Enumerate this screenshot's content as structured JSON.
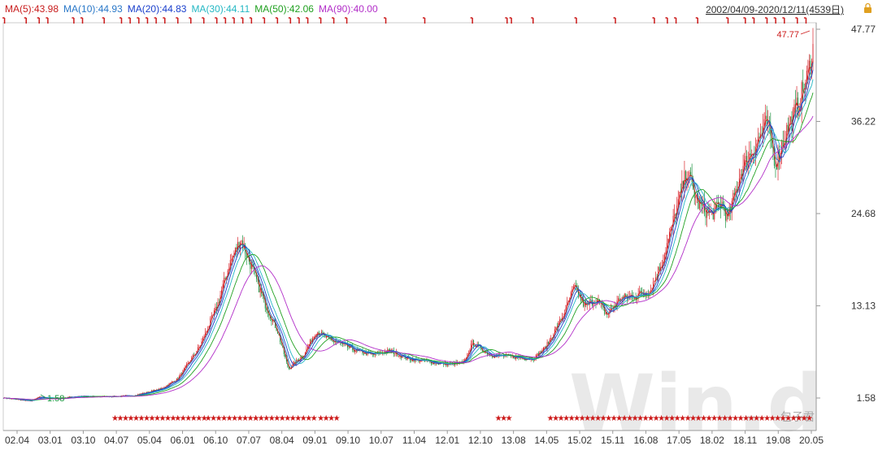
{
  "header": {
    "ma_labels": [
      {
        "text": "MA(5):43.98",
        "color": "#c81c1c"
      },
      {
        "text": "MA(10):44.93",
        "color": "#2a78c8"
      },
      {
        "text": "MA(20):44.83",
        "color": "#1a3fcc"
      },
      {
        "text": "MA(30):44.11",
        "color": "#25b8c4"
      },
      {
        "text": "MA(50):42.06",
        "color": "#20a020"
      },
      {
        "text": "MA(90):40.00",
        "color": "#b22ec8"
      }
    ],
    "date_range": "2002/04/09-2020/12/11(4539日)",
    "lock_icon": "lock-icon"
  },
  "watermark": {
    "logo_text": "Win.d",
    "caption": "包子君"
  },
  "chart_data": {
    "type": "candlestick",
    "x_tick_labels": [
      "02.04",
      "03.01",
      "03.10",
      "04.07",
      "05.04",
      "06.01",
      "06.10",
      "07.07",
      "08.04",
      "09.01",
      "09.10",
      "10.07",
      "11.04",
      "12.01",
      "12.10",
      "13.08",
      "14.05",
      "15.02",
      "15.11",
      "16.08",
      "17.05",
      "18.02",
      "18.11",
      "19.08",
      "20.05"
    ],
    "y_tick_labels": [
      "47.77",
      "36.22",
      "24.68",
      "13.13",
      "1.58"
    ],
    "ylim": [
      1.58,
      47.77
    ],
    "max_annotation": {
      "date": "2020.11",
      "value": "47.77"
    },
    "min_annotation": {
      "date": "2003.01",
      "value": "1.58"
    },
    "colors": {
      "up": "#d9262e",
      "down": "#1a9440",
      "ma5": "#c81c1c",
      "ma10": "#2a78c8",
      "ma20": "#1a3fcc",
      "ma30": "#25b8c4",
      "ma50": "#20a020",
      "ma90": "#b22ec8",
      "marker": "#cc1a1a"
    },
    "close_series": [
      {
        "x": 2002.27,
        "y": 1.6
      },
      {
        "x": 2002.9,
        "y": 1.2
      },
      {
        "x": 2003.1,
        "y": 1.7
      },
      {
        "x": 2003.5,
        "y": 1.5
      },
      {
        "x": 2004.0,
        "y": 1.8
      },
      {
        "x": 2004.5,
        "y": 1.75
      },
      {
        "x": 2005.0,
        "y": 1.8
      },
      {
        "x": 2005.3,
        "y": 1.9
      },
      {
        "x": 2005.9,
        "y": 2.7
      },
      {
        "x": 2006.3,
        "y": 4.0
      },
      {
        "x": 2006.8,
        "y": 8.0
      },
      {
        "x": 2007.2,
        "y": 13.0
      },
      {
        "x": 2007.5,
        "y": 18.5
      },
      {
        "x": 2007.75,
        "y": 21.5
      },
      {
        "x": 2008.0,
        "y": 18.0
      },
      {
        "x": 2008.3,
        "y": 13.5
      },
      {
        "x": 2008.6,
        "y": 10.0
      },
      {
        "x": 2008.85,
        "y": 5.2
      },
      {
        "x": 2009.2,
        "y": 7.0
      },
      {
        "x": 2009.5,
        "y": 10.0
      },
      {
        "x": 2009.75,
        "y": 9.0
      },
      {
        "x": 2010.0,
        "y": 8.5
      },
      {
        "x": 2010.4,
        "y": 7.5
      },
      {
        "x": 2010.8,
        "y": 7.0
      },
      {
        "x": 2011.2,
        "y": 7.5
      },
      {
        "x": 2011.6,
        "y": 6.5
      },
      {
        "x": 2012.0,
        "y": 6.2
      },
      {
        "x": 2012.5,
        "y": 5.8
      },
      {
        "x": 2012.9,
        "y": 6.0
      },
      {
        "x": 2013.1,
        "y": 8.5
      },
      {
        "x": 2013.5,
        "y": 7.0
      },
      {
        "x": 2013.9,
        "y": 6.8
      },
      {
        "x": 2014.5,
        "y": 6.5
      },
      {
        "x": 2014.8,
        "y": 8.0
      },
      {
        "x": 2015.2,
        "y": 12.0
      },
      {
        "x": 2015.45,
        "y": 15.5
      },
      {
        "x": 2015.7,
        "y": 13.0
      },
      {
        "x": 2015.95,
        "y": 14.0
      },
      {
        "x": 2016.2,
        "y": 12.0
      },
      {
        "x": 2016.5,
        "y": 14.0
      },
      {
        "x": 2016.9,
        "y": 14.5
      },
      {
        "x": 2017.2,
        "y": 15.0
      },
      {
        "x": 2017.5,
        "y": 19.0
      },
      {
        "x": 2017.8,
        "y": 25.0
      },
      {
        "x": 2018.05,
        "y": 30.0
      },
      {
        "x": 2018.3,
        "y": 26.0
      },
      {
        "x": 2018.6,
        "y": 24.5
      },
      {
        "x": 2018.85,
        "y": 26.0
      },
      {
        "x": 2019.0,
        "y": 24.0
      },
      {
        "x": 2019.3,
        "y": 30.0
      },
      {
        "x": 2019.6,
        "y": 33.0
      },
      {
        "x": 2019.9,
        "y": 36.0
      },
      {
        "x": 2020.1,
        "y": 31.0
      },
      {
        "x": 2020.35,
        "y": 35.0
      },
      {
        "x": 2020.6,
        "y": 38.0
      },
      {
        "x": 2020.85,
        "y": 42.0
      },
      {
        "x": 2020.95,
        "y": 45.5
      }
    ],
    "signal_markers_top": [
      2002.3,
      2002.8,
      2003.1,
      2003.3,
      2003.9,
      2004.1,
      2004.6,
      2005.0,
      2005.2,
      2005.4,
      2005.6,
      2005.8,
      2006.0,
      2006.3,
      2006.6,
      2006.9,
      2007.2,
      2007.4,
      2007.6,
      2007.8,
      2008.0,
      2008.3,
      2008.6,
      2008.9,
      2009.1,
      2009.3,
      2009.6,
      2009.9,
      2010.2,
      2011.1,
      2012.0,
      2013.1,
      2013.9,
      2014.0,
      2014.5,
      2015.5,
      2016.4,
      2017.3,
      2017.6,
      2017.8,
      2018.3,
      2019.0,
      2019.4,
      2019.6,
      2019.9,
      2020.1,
      2020.3,
      2020.6,
      2020.8
    ],
    "signal_markers_bottom_ranges": [
      [
        2004.85,
        2006.3
      ],
      [
        2006.3,
        2007.0
      ],
      [
        2007.0,
        2008.1
      ],
      [
        2008.1,
        2009.5
      ],
      [
        2009.6,
        2010.0
      ],
      [
        2013.7,
        2013.95
      ],
      [
        2014.9,
        2020.95
      ]
    ]
  }
}
